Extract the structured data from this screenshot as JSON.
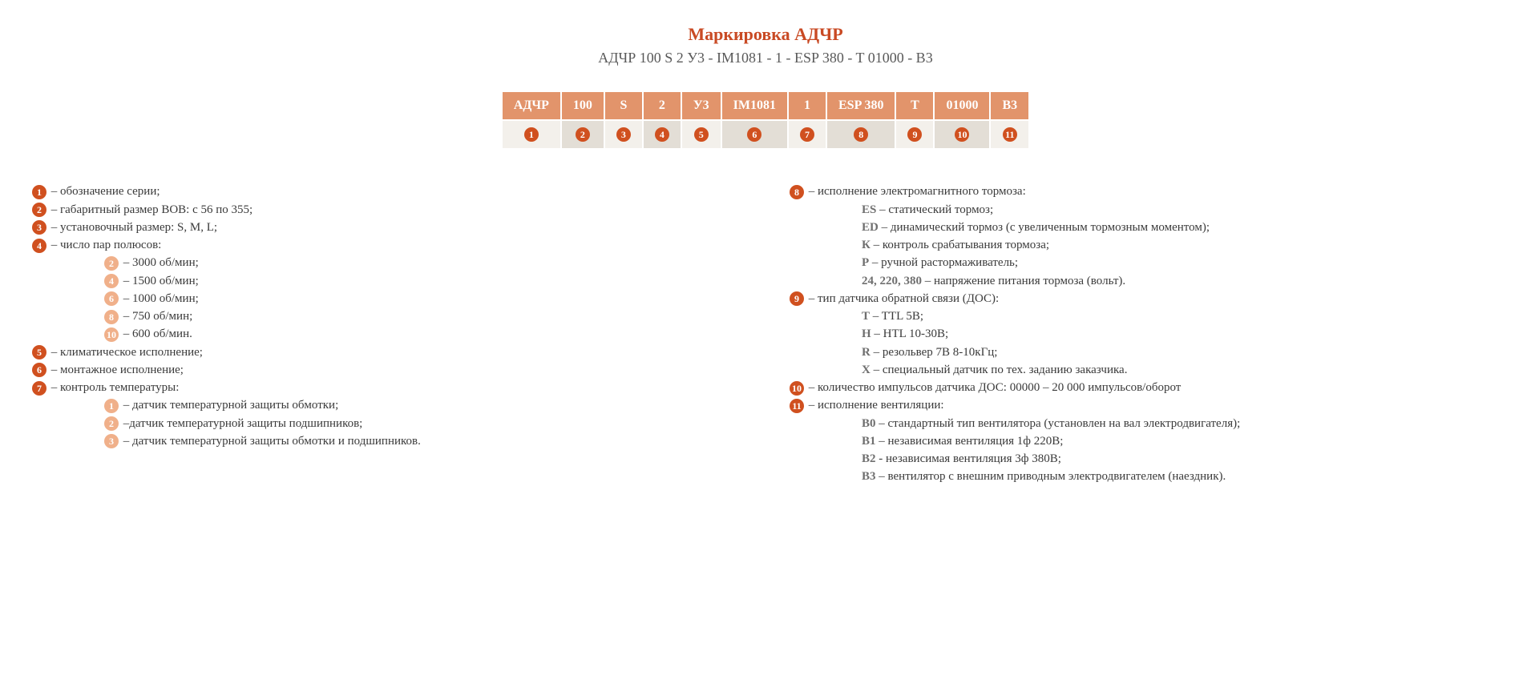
{
  "header": {
    "title": "Маркировка АДЧР",
    "subtitle": "АДЧР 100 S 2 У3 - IM1081 - 1 - ESP 380 - T 01000 - B3"
  },
  "table": {
    "headers": [
      "АДЧР",
      "100",
      "S",
      "2",
      "У3",
      "IM1081",
      "1",
      "ESP 380",
      "T",
      "01000",
      "B3"
    ],
    "nums": [
      "1",
      "2",
      "3",
      "4",
      "5",
      "6",
      "7",
      "8",
      "9",
      "10",
      "11"
    ],
    "shades": [
      "lt",
      "dk",
      "lt",
      "dk",
      "lt",
      "dk",
      "lt",
      "dk",
      "lt",
      "dk",
      "lt"
    ]
  },
  "colors": {
    "accent": "#c94a24",
    "circle_dark": "#d0501f",
    "circle_light": "#f0b08a",
    "header_bg": "#e2946b",
    "cell_light": "#f3f0eb",
    "cell_dark": "#e3ded6"
  },
  "left": {
    "i1": "– обозначение серии;",
    "i2": "– габаритный размер ВОВ: с 56 по 355;",
    "i3": "– установочный размер: S, M, L;",
    "i4": "– число пар полюсов:",
    "i4_subs": [
      {
        "n": "2",
        "t": "– 3000 об/мин;"
      },
      {
        "n": "4",
        "t": "– 1500 об/мин;"
      },
      {
        "n": "6",
        "t": "– 1000 об/мин;"
      },
      {
        "n": "8",
        "t": "– 750 об/мин;"
      },
      {
        "n": "10",
        "t": "– 600 об/мин."
      }
    ],
    "i5": "– климатическое исполнение;",
    "i6": "– монтажное исполнение;",
    "i7": "– контроль температуры:",
    "i7_subs": [
      {
        "n": "1",
        "t": "– датчик температурной защиты обмотки;"
      },
      {
        "n": "2",
        "t": "–датчик температурной защиты подшипников;"
      },
      {
        "n": "3",
        "t": "– датчик температурной защиты обмотки и подшипников."
      }
    ]
  },
  "right": {
    "i8": "– исполнение электромагнитного тормоза:",
    "i8_subs": [
      {
        "c": "ES",
        "t": "– статический тормоз;"
      },
      {
        "c": "ED",
        "t": "– динамический тормоз (с увеличенным тормозным моментом);"
      },
      {
        "c": "К",
        "t": "– контроль срабатывания тормоза;"
      },
      {
        "c": "Р",
        "t": "– ручной растормаживатель;"
      },
      {
        "c": "24, 220, 380",
        "t": "– напряжение питания тормоза (вольт)."
      }
    ],
    "i9": "– тип датчика обратной связи (ДОС):",
    "i9_subs": [
      {
        "c": "T",
        "t": "– TTL 5В;"
      },
      {
        "c": "H",
        "t": "– HTL 10-30В;"
      },
      {
        "c": "R",
        "t": "– резольвер 7В 8-10кГц;"
      },
      {
        "c": "X",
        "t": "– специальный датчик по тех. заданию заказчика."
      }
    ],
    "i10": "– количество импульсов датчика ДОС: 00000 – 20 000 импульсов/оборот",
    "i11": "– исполнение вентиляции:",
    "i11_subs": [
      {
        "c": "В0",
        "t": "– стандартный тип вентилятора (установлен на вал электродвигателя);"
      },
      {
        "c": "В1",
        "t": "– независимая вентиляция 1ф 220В;"
      },
      {
        "c": "В2",
        "t": "- независимая вентиляция 3ф 380В;"
      },
      {
        "c": "В3",
        "t": "– вентилятор с внешним приводным электродвигателем (наездник)."
      }
    ]
  }
}
